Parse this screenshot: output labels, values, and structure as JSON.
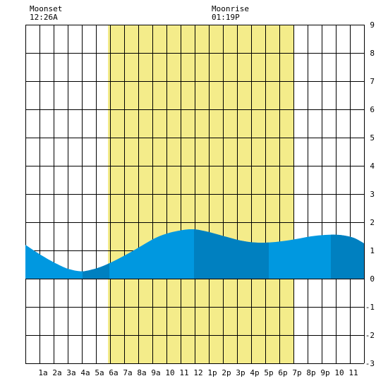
{
  "moon": {
    "moonset_label": "Moonset",
    "moonset_time": "12:26A",
    "moonrise_label": "Moonrise",
    "moonrise_time": "01:19P"
  },
  "chart_data": {
    "type": "area",
    "x_unit": "hour of day",
    "xlim": [
      -0.25,
      23.75
    ],
    "ylim": [
      -3,
      9
    ],
    "y_ticks": [
      "9",
      "8",
      "7",
      "6",
      "5",
      "4",
      "3",
      "2",
      "1",
      "0",
      "-1",
      "-2",
      "-3"
    ],
    "x_tick_labels": [
      "1a",
      "2a",
      "3a",
      "4a",
      "5a",
      "6a",
      "7a",
      "8a",
      "9a",
      "10",
      "11",
      "12",
      "1p",
      "2p",
      "3p",
      "4p",
      "5p",
      "6p",
      "7p",
      "8p",
      "9p",
      "10",
      "11"
    ],
    "daylight": {
      "start": 5.6,
      "end": 18.8
    },
    "tide": {
      "x": [
        -0.25,
        0.5,
        1.5,
        2.5,
        3.0,
        3.5,
        4.0,
        5.0,
        6.0,
        7.0,
        8.0,
        9.0,
        10.0,
        11.0,
        11.5,
        12.0,
        13.0,
        14.0,
        15.0,
        16.0,
        17.0,
        18.0,
        19.0,
        20.0,
        21.0,
        22.0,
        23.0,
        23.75
      ],
      "y": [
        1.2,
        0.95,
        0.65,
        0.4,
        0.32,
        0.27,
        0.27,
        0.4,
        0.62,
        0.88,
        1.17,
        1.45,
        1.63,
        1.73,
        1.75,
        1.73,
        1.62,
        1.48,
        1.35,
        1.28,
        1.28,
        1.33,
        1.41,
        1.5,
        1.55,
        1.55,
        1.45,
        1.25
      ]
    },
    "dark_bands": [
      [
        3.8,
        5.7
      ],
      [
        11.7,
        17.0
      ],
      [
        21.4,
        23.75
      ]
    ],
    "colors": {
      "daylight": "#f4ec8a",
      "tide_light": "#0098e0",
      "tide_dark": "#0080c0",
      "grid": "#000000",
      "background": "#ffffff"
    }
  }
}
